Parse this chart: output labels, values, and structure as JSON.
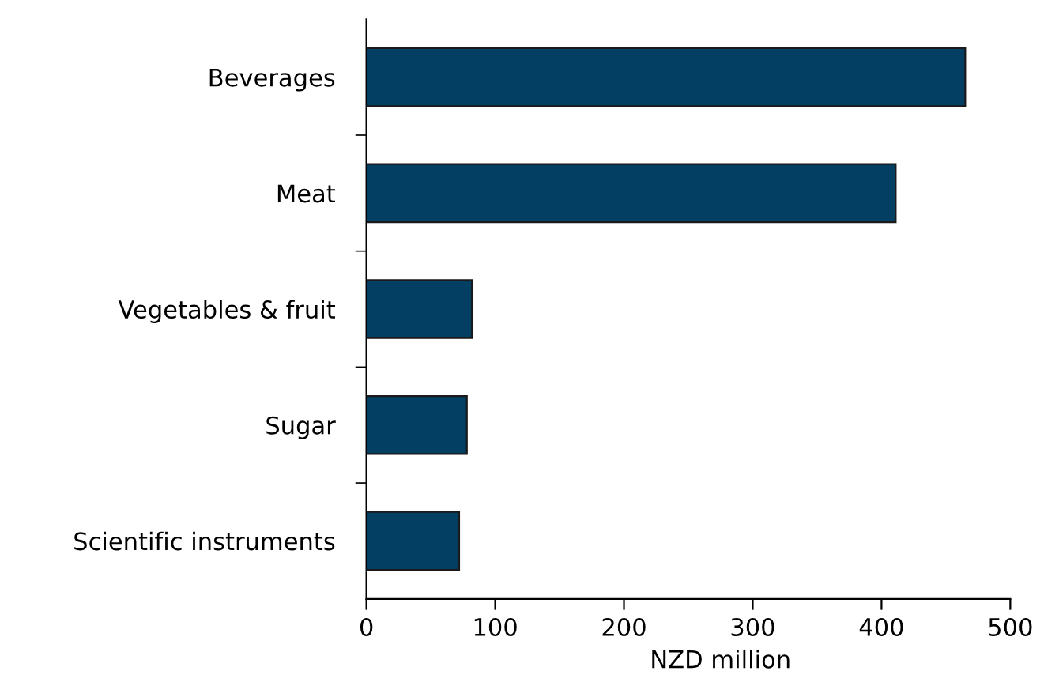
{
  "chart_data": {
    "type": "bar",
    "orientation": "horizontal",
    "xlabel": "NZD million",
    "categories": [
      "Beverages",
      "Meat",
      "Vegetables & fruit",
      "Sugar",
      "Scientific instruments"
    ],
    "values": [
      465,
      411,
      82,
      78,
      72
    ],
    "color": "#023f63",
    "xlim": [
      0,
      500
    ],
    "xticks": [
      0,
      100,
      200,
      300,
      400,
      500
    ],
    "grid": false
  }
}
